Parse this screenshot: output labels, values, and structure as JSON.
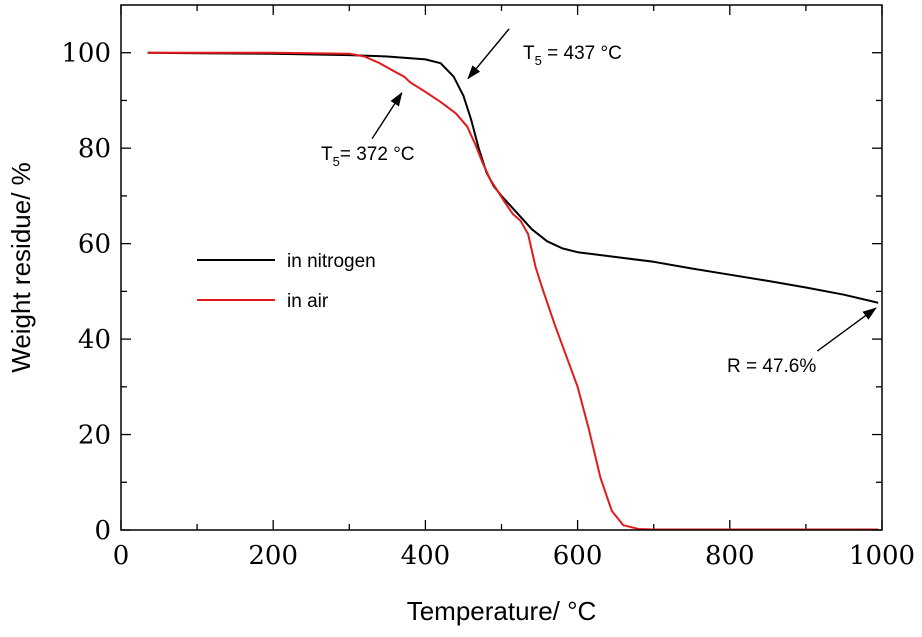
{
  "chart_data": {
    "type": "line",
    "xlabel": "Temperature/ °C",
    "ylabel": "Weight residue/ %",
    "xlim": [
      0,
      1000
    ],
    "ylim": [
      0,
      110
    ],
    "xticks": [
      0,
      200,
      400,
      600,
      800,
      1000
    ],
    "yticks": [
      0,
      20,
      40,
      60,
      80,
      100
    ],
    "grid": false,
    "legend": {
      "placement": "center-left",
      "entries": [
        {
          "label": "in nitrogen",
          "color": "#000000"
        },
        {
          "label": "in air",
          "color": "#e31a1c"
        }
      ]
    },
    "series": [
      {
        "name": "in nitrogen",
        "color": "#000000",
        "points": [
          [
            35,
            100
          ],
          [
            100,
            99.9
          ],
          [
            200,
            99.8
          ],
          [
            300,
            99.5
          ],
          [
            350,
            99.2
          ],
          [
            400,
            98.6
          ],
          [
            420,
            97.8
          ],
          [
            437,
            95.0
          ],
          [
            450,
            91.0
          ],
          [
            460,
            86.0
          ],
          [
            470,
            80.0
          ],
          [
            480,
            75.0
          ],
          [
            490,
            72.0
          ],
          [
            500,
            70.0
          ],
          [
            520,
            66.5
          ],
          [
            540,
            63.0
          ],
          [
            560,
            60.5
          ],
          [
            580,
            59.0
          ],
          [
            600,
            58.2
          ],
          [
            650,
            57.2
          ],
          [
            700,
            56.2
          ],
          [
            750,
            54.8
          ],
          [
            800,
            53.5
          ],
          [
            850,
            52.2
          ],
          [
            900,
            50.8
          ],
          [
            950,
            49.3
          ],
          [
            990,
            47.8
          ],
          [
            995,
            47.6
          ]
        ]
      },
      {
        "name": "in air",
        "color": "#e31a1c",
        "points": [
          [
            35,
            100
          ],
          [
            100,
            100
          ],
          [
            200,
            100
          ],
          [
            300,
            99.8
          ],
          [
            320,
            99.2
          ],
          [
            340,
            97.8
          ],
          [
            360,
            96.0
          ],
          [
            372,
            95.0
          ],
          [
            380,
            93.8
          ],
          [
            400,
            91.8
          ],
          [
            420,
            89.7
          ],
          [
            440,
            87.3
          ],
          [
            455,
            84.5
          ],
          [
            465,
            81.0
          ],
          [
            475,
            77.0
          ],
          [
            485,
            73.5
          ],
          [
            495,
            71.0
          ],
          [
            505,
            68.5
          ],
          [
            515,
            66.2
          ],
          [
            525,
            64.8
          ],
          [
            535,
            62.0
          ],
          [
            545,
            55.0
          ],
          [
            555,
            50.0
          ],
          [
            570,
            43.0
          ],
          [
            585,
            36.5
          ],
          [
            600,
            30.0
          ],
          [
            615,
            21.0
          ],
          [
            630,
            11.0
          ],
          [
            645,
            4.0
          ],
          [
            660,
            1.0
          ],
          [
            680,
            0.2
          ],
          [
            700,
            0.1
          ],
          [
            800,
            0.1
          ],
          [
            900,
            0.1
          ],
          [
            995,
            0.1
          ]
        ]
      }
    ],
    "annotations": [
      {
        "id": "t5-nitrogen",
        "text": "T",
        "subscript": "5",
        "suffix": " = 437 °C",
        "from": [
          510,
          105
        ],
        "to": [
          456,
          94.6
        ]
      },
      {
        "id": "t5-air",
        "text": "T",
        "subscript": "5",
        "suffix": "= 372 °C",
        "from": [
          330,
          82
        ],
        "to": [
          369,
          91.6
        ]
      },
      {
        "id": "residue",
        "text": "R = 47.6%",
        "subscript": "",
        "suffix": "",
        "from": [
          915,
          37.5
        ],
        "to": [
          992,
          46.5
        ]
      }
    ]
  }
}
